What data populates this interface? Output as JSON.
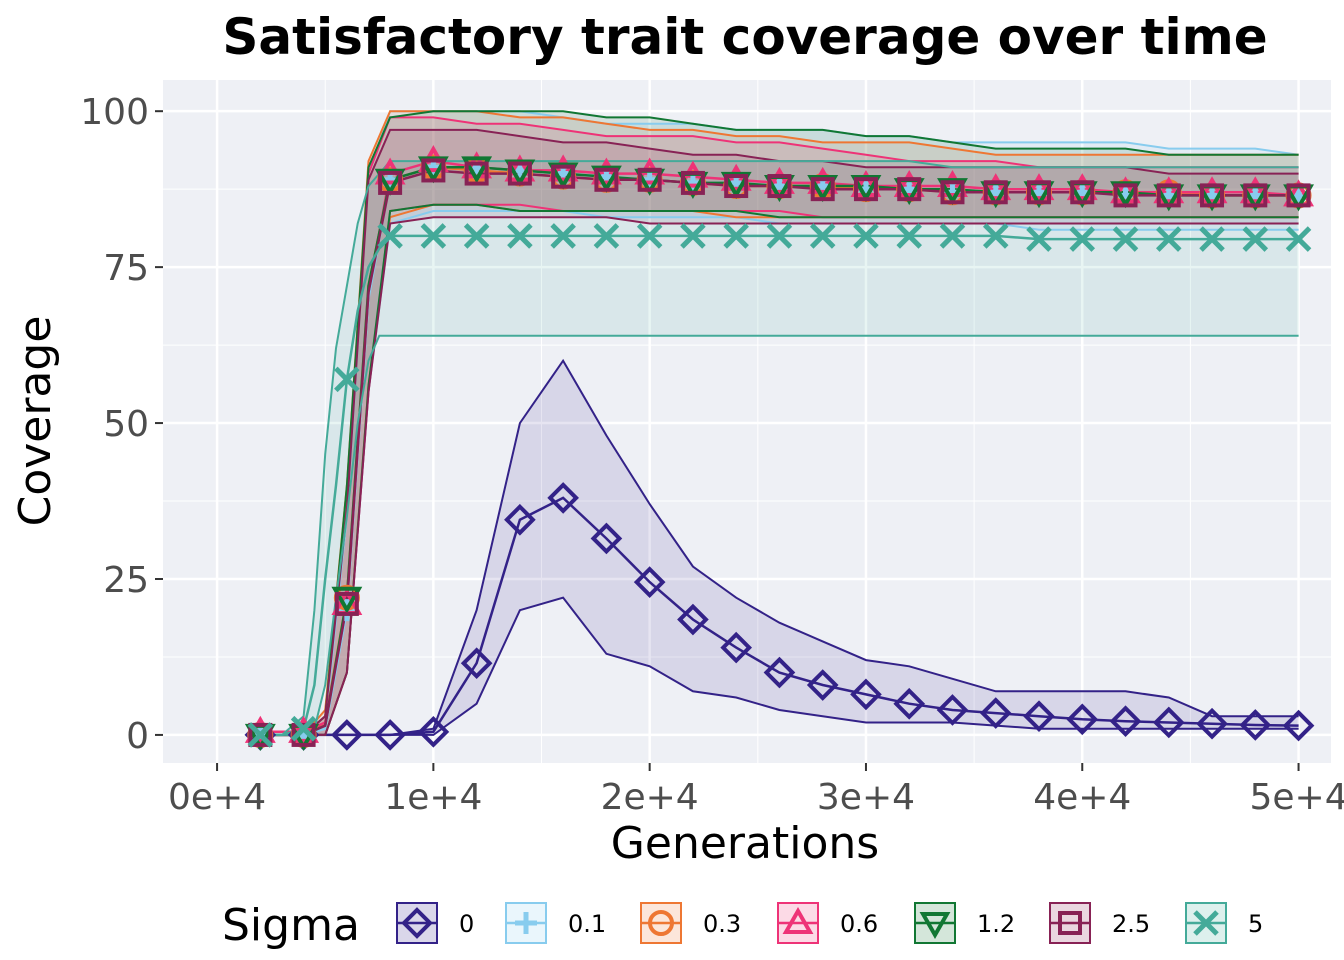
{
  "chart_data": {
    "type": "line",
    "title": "Satisfactory trait coverage over time",
    "xlabel": "Generations",
    "ylabel": "Coverage",
    "xlim": [
      -2500,
      51500
    ],
    "ylim": [
      -4.5,
      105
    ],
    "x_ticks": [
      0,
      10000,
      20000,
      30000,
      40000,
      50000
    ],
    "x_tick_labels": [
      "0e+4",
      "1e+4",
      "2e+4",
      "3e+4",
      "4e+4",
      "5e+4"
    ],
    "y_ticks": [
      0,
      25,
      50,
      75,
      100
    ],
    "y_tick_labels": [
      "0",
      "25",
      "50",
      "75",
      "100"
    ],
    "grid": true,
    "legend": {
      "title": "Sigma",
      "position": "bottom"
    },
    "series": [
      {
        "name": "0",
        "color": "#332288",
        "marker": "diamond",
        "x": [
          2000,
          4000,
          6000,
          8000,
          10000,
          12000,
          14000,
          16000,
          18000,
          20000,
          22000,
          24000,
          26000,
          28000,
          30000,
          32000,
          34000,
          36000,
          38000,
          40000,
          42000,
          44000,
          46000,
          48000,
          50000
        ],
        "median": [
          0,
          0,
          0,
          0,
          0.5,
          11.5,
          34.5,
          38,
          31.5,
          24.5,
          18.5,
          14,
          10,
          8,
          6.5,
          5,
          4,
          3.5,
          3,
          2.5,
          2.2,
          2,
          1.8,
          1.6,
          1.5
        ],
        "upper": [
          0,
          0,
          0,
          0,
          1,
          20,
          50,
          60,
          48,
          37,
          27,
          22,
          18,
          15,
          12,
          11,
          9,
          7,
          7,
          7,
          7,
          6,
          3,
          3,
          3
        ],
        "lower": [
          0,
          0,
          0,
          0,
          0,
          5,
          20,
          22,
          13,
          11,
          7,
          6,
          4,
          3,
          2,
          2,
          2,
          1.5,
          1,
          1,
          1,
          1,
          1,
          1,
          1
        ]
      },
      {
        "name": "0.1",
        "color": "#88CCEE",
        "marker": "plus",
        "x": [
          2000,
          4000,
          5000,
          6000,
          7000,
          8000,
          10000,
          12000,
          14000,
          16000,
          18000,
          20000,
          22000,
          24000,
          26000,
          28000,
          30000,
          32000,
          34000,
          36000,
          38000,
          40000,
          42000,
          44000,
          46000,
          48000,
          50000
        ],
        "median": [
          0,
          0,
          1,
          20,
          70,
          89,
          91,
          91,
          90.5,
          90,
          89.5,
          89,
          88.5,
          88.5,
          88,
          88,
          87.5,
          87.5,
          87,
          87,
          87,
          87,
          86.5,
          86.5,
          86.5,
          86.5,
          86.5
        ],
        "upper": [
          0,
          0,
          2,
          35,
          90,
          100,
          100,
          100,
          100,
          99,
          98,
          98,
          98,
          97,
          97,
          97,
          96,
          96,
          95,
          95,
          95,
          95,
          95,
          94,
          94,
          94,
          93
        ],
        "lower": [
          0,
          0,
          0,
          10,
          55,
          82,
          84,
          84,
          84,
          84,
          83,
          83,
          83,
          83,
          82,
          82,
          82,
          82,
          82,
          82,
          81,
          81,
          81,
          81,
          81,
          81,
          81
        ]
      },
      {
        "name": "0.3",
        "color": "#EE7733",
        "marker": "circle",
        "x": [
          2000,
          4000,
          5000,
          6000,
          7000,
          8000,
          10000,
          12000,
          14000,
          16000,
          18000,
          20000,
          22000,
          24000,
          26000,
          28000,
          30000,
          32000,
          34000,
          36000,
          38000,
          40000,
          42000,
          44000,
          46000,
          48000,
          50000
        ],
        "median": [
          0,
          0,
          2,
          22,
          72,
          89,
          91,
          90.5,
          90,
          89.5,
          89,
          89,
          88.5,
          88,
          88,
          88,
          87.5,
          87.5,
          87,
          87,
          87,
          87,
          87,
          87,
          86.5,
          86.5,
          86.5
        ],
        "upper": [
          0,
          0,
          4,
          40,
          92,
          100,
          100,
          100,
          99,
          99,
          98,
          97,
          97,
          96,
          96,
          95,
          95,
          95,
          94,
          93,
          93,
          93,
          93,
          93,
          93,
          93,
          93
        ],
        "lower": [
          0,
          0,
          0,
          10,
          56,
          83,
          85,
          85,
          84,
          84,
          84,
          84,
          84,
          83,
          83,
          83,
          83,
          83,
          83,
          83,
          83,
          83,
          83,
          83,
          83,
          83,
          83
        ]
      },
      {
        "name": "0.6",
        "color": "#EE3377",
        "marker": "triangle-up",
        "x": [
          2000,
          4000,
          5000,
          6000,
          7000,
          8000,
          10000,
          12000,
          14000,
          16000,
          18000,
          20000,
          22000,
          24000,
          26000,
          28000,
          30000,
          32000,
          34000,
          36000,
          38000,
          40000,
          42000,
          44000,
          46000,
          48000,
          50000
        ],
        "median": [
          0.5,
          0.5,
          2,
          21,
          71,
          90,
          92,
          91,
          90.5,
          90.5,
          90,
          90,
          89.5,
          89,
          88.5,
          88.5,
          88,
          88,
          88,
          87.5,
          87.5,
          87.5,
          87,
          87,
          87,
          87,
          86.5
        ],
        "upper": [
          0,
          0,
          3,
          38,
          90,
          99,
          99,
          98,
          98,
          97,
          96,
          96,
          96,
          95,
          95,
          94,
          93,
          92,
          92,
          92,
          91,
          91,
          91,
          91,
          91,
          91,
          91
        ],
        "lower": [
          0,
          0,
          0,
          10,
          55,
          84,
          85,
          85,
          85,
          84,
          84,
          84,
          84,
          84,
          84,
          83,
          83,
          83,
          83,
          83,
          83,
          83,
          83,
          83,
          83,
          83,
          83
        ]
      },
      {
        "name": "1.2",
        "color": "#117733",
        "marker": "triangle-down",
        "x": [
          2000,
          4000,
          5000,
          6000,
          7000,
          8000,
          10000,
          12000,
          14000,
          16000,
          18000,
          20000,
          22000,
          24000,
          26000,
          28000,
          30000,
          32000,
          34000,
          36000,
          38000,
          40000,
          42000,
          44000,
          46000,
          48000,
          50000
        ],
        "median": [
          0,
          0,
          1.5,
          22,
          72,
          89,
          91,
          91,
          90.5,
          90,
          89.5,
          89,
          88.5,
          88.5,
          88,
          88,
          88,
          87.5,
          87.5,
          87,
          87,
          87,
          87,
          86.5,
          86.5,
          86.5,
          86.5
        ],
        "upper": [
          0,
          0,
          3,
          40,
          91,
          99,
          100,
          100,
          100,
          100,
          99,
          99,
          98,
          97,
          97,
          97,
          96,
          96,
          95,
          94,
          94,
          94,
          94,
          93,
          93,
          93,
          93
        ],
        "lower": [
          0,
          0,
          0,
          10,
          56,
          84,
          85,
          85,
          84,
          84,
          84,
          84,
          84,
          84,
          83,
          83,
          83,
          83,
          83,
          83,
          83,
          83,
          83,
          83,
          83,
          83,
          83
        ]
      },
      {
        "name": "2.5",
        "color": "#882255",
        "marker": "square",
        "x": [
          2000,
          4000,
          5000,
          6000,
          7000,
          8000,
          10000,
          12000,
          14000,
          16000,
          18000,
          20000,
          22000,
          24000,
          26000,
          28000,
          30000,
          32000,
          34000,
          36000,
          38000,
          40000,
          42000,
          44000,
          46000,
          48000,
          50000
        ],
        "median": [
          0,
          0,
          1.5,
          21,
          71,
          88.5,
          90.5,
          90,
          90,
          89.5,
          89,
          89,
          88.5,
          88,
          88,
          87.5,
          87.5,
          87.5,
          87,
          87,
          87,
          87,
          86.5,
          86.5,
          86.5,
          86.5,
          86.5
        ],
        "upper": [
          0,
          0,
          3,
          36,
          89,
          97,
          97,
          97,
          96,
          95,
          95,
          94,
          93,
          93,
          92,
          92,
          91,
          91,
          91,
          91,
          91,
          91,
          91,
          90,
          90,
          90,
          90
        ],
        "lower": [
          0,
          0,
          0,
          10,
          55,
          82,
          83,
          83,
          83,
          83,
          83,
          82,
          82,
          82,
          82,
          82,
          82,
          82,
          82,
          82,
          82,
          82,
          82,
          82,
          82,
          82,
          82
        ]
      },
      {
        "name": "5",
        "color": "#44AA99",
        "marker": "x",
        "x": [
          2000,
          3000,
          4000,
          4500,
          5000,
          5500,
          6000,
          6500,
          7000,
          7500,
          8000,
          10000,
          12000,
          14000,
          16000,
          18000,
          20000,
          22000,
          24000,
          26000,
          28000,
          30000,
          32000,
          34000,
          36000,
          38000,
          40000,
          42000,
          44000,
          46000,
          48000,
          50000
        ],
        "median": [
          0,
          0,
          1,
          8,
          25,
          40,
          57,
          68,
          75,
          78,
          80,
          80,
          80,
          80,
          80,
          80,
          80,
          80,
          80,
          80,
          80,
          80,
          80,
          80,
          80,
          79.5,
          79.5,
          79.5,
          79.5,
          79.5,
          79.5,
          79.5
        ],
        "upper": [
          0,
          0,
          3,
          20,
          45,
          62,
          72,
          82,
          88,
          90,
          92,
          92,
          92,
          92,
          92,
          92,
          92,
          92,
          92,
          92,
          92,
          92,
          92,
          91,
          91,
          91,
          91,
          91,
          91,
          91,
          91,
          91
        ],
        "lower": [
          0,
          0,
          0,
          1,
          8,
          22,
          35,
          50,
          60,
          64,
          64,
          64,
          64,
          64,
          64,
          64,
          64,
          64,
          64,
          64,
          64,
          64,
          64,
          64,
          64,
          64,
          64,
          64,
          64,
          64,
          64,
          64
        ]
      }
    ]
  }
}
